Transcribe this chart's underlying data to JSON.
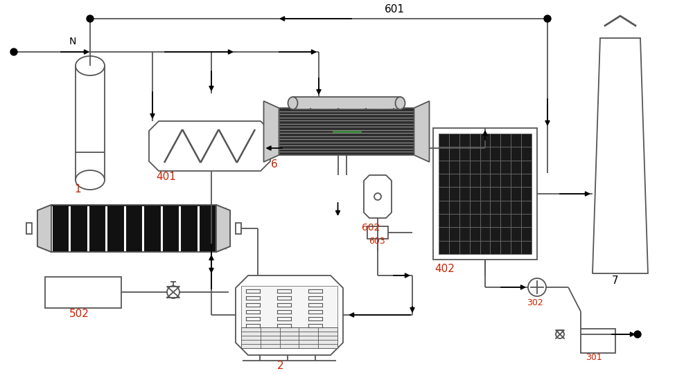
{
  "bg_color": "#ffffff",
  "lc": "#555555",
  "lw": 1.3,
  "rc": "#cc2200",
  "bc": "#000000",
  "fig_w": 10.0,
  "fig_h": 5.49
}
